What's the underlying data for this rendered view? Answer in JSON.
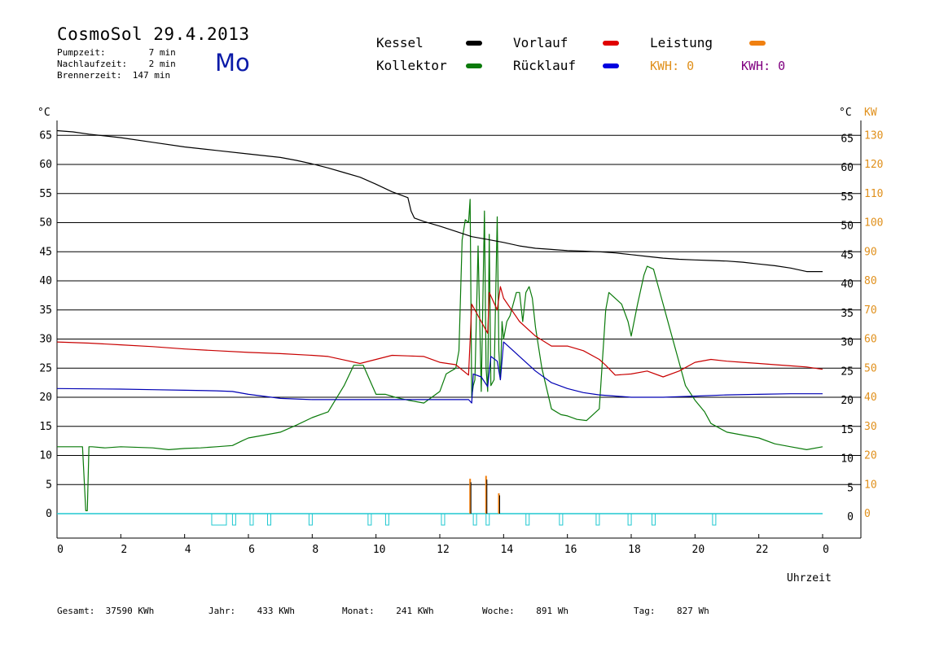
{
  "header": {
    "title": "CosmoSol 29.4.2013",
    "day": "Mo",
    "pumpzeit": "Pumpzeit:        7 min",
    "nachlaufzeit": "Nachlaufzeit:    2 min",
    "brennerzeit": "Brennerzeit:  147 min"
  },
  "legend": {
    "kessel": "Kessel",
    "kollektor": "Kollektor",
    "vorlauf": "Vorlauf",
    "ruecklauf": "Rücklauf",
    "leistung": "Leistung",
    "kwh_orange": "KWH: 0",
    "kwh_purple": "KWH: 0"
  },
  "footer": {
    "gesamt": "Gesamt:  37590 KWh",
    "jahr": "Jahr:    433 KWh",
    "monat": "Monat:    241 KWh",
    "woche": "Woche:    891 Wh",
    "tag": "Tag:    827 Wh"
  },
  "colors": {
    "kessel": "#000000",
    "kollektor": "#0a7a0a",
    "vorlauf": "#c80000",
    "ruecklauf": "#0000b4",
    "leistung": "#f08010",
    "kwh_purple": "#800080",
    "pump": "#20c8d0",
    "day": "#0a1aa8"
  },
  "chart_data": {
    "type": "line",
    "xlabel": "Uhrzeit",
    "xlim": [
      0,
      24
    ],
    "x_ticks": [
      "0",
      "2",
      "4",
      "6",
      "8",
      "10",
      "12",
      "14",
      "16",
      "18",
      "20",
      "22",
      "0"
    ],
    "y_left_unit": "°C",
    "y_right_unit": "°C",
    "y_right2_unit": "KW",
    "ylim": [
      -4,
      70
    ],
    "y_ticks": [
      0,
      5,
      10,
      15,
      20,
      25,
      30,
      35,
      40,
      45,
      50,
      55,
      60,
      65
    ],
    "y_ticks_kw": [
      0,
      10,
      20,
      30,
      40,
      50,
      60,
      70,
      80,
      90,
      100,
      110,
      120,
      130
    ],
    "grid": "horizontal",
    "series": [
      {
        "name": "Kessel",
        "color_key": "kessel",
        "x": [
          0,
          0.5,
          1,
          2,
          3,
          4,
          5,
          6,
          7,
          7.5,
          8,
          8.5,
          9,
          9.5,
          10,
          10.5,
          11,
          11.1,
          11.2,
          11.5,
          12,
          12.5,
          13,
          13.5,
          14,
          14.5,
          15,
          15.5,
          16,
          16.5,
          17,
          17.5,
          18,
          18.5,
          19,
          19.5,
          20,
          20.5,
          21,
          21.5,
          22,
          22.5,
          23,
          23.5,
          24
        ],
        "y": [
          65.8,
          65.6,
          65.2,
          64.6,
          63.8,
          63,
          62.4,
          61.8,
          61.2,
          60.7,
          60.1,
          59.4,
          58.6,
          57.8,
          56.6,
          55.3,
          54.3,
          52,
          50.8,
          50.2,
          49.4,
          48.5,
          47.6,
          47.1,
          46.6,
          46,
          45.6,
          45.4,
          45.2,
          45.1,
          45,
          44.8,
          44.5,
          44.2,
          43.9,
          43.7,
          43.6,
          43.5,
          43.4,
          43.2,
          42.9,
          42.6,
          42.2,
          41.6,
          41.6
        ]
      },
      {
        "name": "Vorlauf",
        "color_key": "vorlauf",
        "x": [
          0,
          1,
          2,
          3,
          4,
          5,
          6,
          7,
          8,
          8.5,
          9,
          9.5,
          10,
          10.5,
          11,
          11.5,
          12,
          12.5,
          12.9,
          13.0,
          13.05,
          13.3,
          13.5,
          13.55,
          13.8,
          13.9,
          14,
          14.5,
          15,
          15.5,
          16,
          16.5,
          17,
          17.2,
          17.5,
          18,
          18.5,
          19,
          19.5,
          20,
          20.5,
          21,
          21.5,
          22,
          22.5,
          23,
          23.5,
          24
        ],
        "y": [
          29.5,
          29.3,
          29.0,
          28.7,
          28.3,
          28.0,
          27.7,
          27.5,
          27.2,
          27.0,
          26.4,
          25.8,
          26.5,
          27.2,
          27.1,
          27.0,
          26.0,
          25.6,
          23.8,
          36,
          35.5,
          33,
          31,
          38,
          35,
          39,
          37,
          33,
          30.5,
          28.8,
          28.8,
          28,
          26.5,
          25.5,
          23.8,
          24,
          24.5,
          23.5,
          24.5,
          26,
          26.5,
          26.2,
          26,
          25.8,
          25.6,
          25.4,
          25.2,
          24.8
        ]
      },
      {
        "name": "Rücklauf",
        "color_key": "ruecklauf",
        "x": [
          0,
          2,
          3,
          4,
          5,
          5.5,
          6,
          7,
          8,
          9,
          10,
          11,
          12,
          12.9,
          13.0,
          13.05,
          13.3,
          13.5,
          13.6,
          13.8,
          13.9,
          14,
          14.5,
          15,
          15.5,
          16,
          16.5,
          17,
          18,
          19,
          20,
          21,
          22,
          23,
          24
        ],
        "y": [
          21.5,
          21.4,
          21.3,
          21.2,
          21.1,
          21,
          20.5,
          19.8,
          19.6,
          19.6,
          19.6,
          19.6,
          19.6,
          19.6,
          19,
          24,
          23.5,
          21.8,
          27,
          26.2,
          23,
          29.5,
          27,
          24.5,
          22.5,
          21.5,
          20.8,
          20.4,
          20.0,
          20.0,
          20.2,
          20.4,
          20.5,
          20.6,
          20.6
        ]
      },
      {
        "name": "Kollektor",
        "color_key": "kollektor",
        "x": [
          0,
          0.5,
          0.8,
          0.9,
          0.95,
          1.0,
          1.1,
          1.5,
          2,
          3,
          3.5,
          4,
          4.5,
          5,
          5.5,
          5.8,
          6,
          6.5,
          7,
          7.5,
          8,
          8.5,
          9,
          9.3,
          9.6,
          9.8,
          10,
          10.3,
          10.6,
          11,
          11.5,
          12,
          12.2,
          12.5,
          12.6,
          12.7,
          12.8,
          12.9,
          12.95,
          13.0,
          13.05,
          13.1,
          13.2,
          13.3,
          13.4,
          13.45,
          13.5,
          13.55,
          13.6,
          13.7,
          13.8,
          13.85,
          13.9,
          13.95,
          14.0,
          14.1,
          14.2,
          14.4,
          14.5,
          14.6,
          14.7,
          14.8,
          14.9,
          15.0,
          15.2,
          15.5,
          15.8,
          16,
          16.3,
          16.6,
          16.8,
          17,
          17.2,
          17.3,
          17.5,
          17.7,
          17.9,
          18.0,
          18.2,
          18.4,
          18.5,
          18.7,
          18.8,
          19.0,
          19.2,
          19.5,
          19.7,
          20,
          20.3,
          20.5,
          21,
          21.5,
          22,
          22.5,
          23,
          23.5,
          24
        ],
        "y": [
          11.5,
          11.5,
          11.5,
          0.5,
          0.5,
          11.5,
          11.5,
          11.3,
          11.5,
          11.3,
          11.0,
          11.2,
          11.3,
          11.5,
          11.7,
          12.5,
          13,
          13.5,
          14,
          15.2,
          16.5,
          17.5,
          22,
          25.5,
          25.5,
          23,
          20.5,
          20.5,
          20.0,
          19.5,
          19.0,
          21,
          24,
          25,
          28,
          47,
          50.5,
          50,
          54,
          20,
          22,
          23,
          46,
          21,
          52,
          25,
          21,
          48,
          22,
          23,
          51,
          28,
          23,
          33,
          30,
          33,
          34,
          38,
          38,
          33,
          38,
          39,
          37,
          32,
          25,
          18,
          17,
          16.8,
          16.2,
          16.0,
          17,
          18,
          35,
          38,
          37,
          36,
          33,
          30.5,
          36,
          41,
          42.5,
          42,
          40,
          36,
          32,
          26,
          22,
          19.5,
          17.5,
          15.5,
          14,
          13.5,
          13,
          12,
          11.5,
          11,
          11.5
        ]
      }
    ],
    "leistung": {
      "name": "Leistung",
      "x": [
        12.95,
        13.45,
        13.85
      ],
      "y_kw": [
        12,
        13,
        7
      ]
    }
  }
}
